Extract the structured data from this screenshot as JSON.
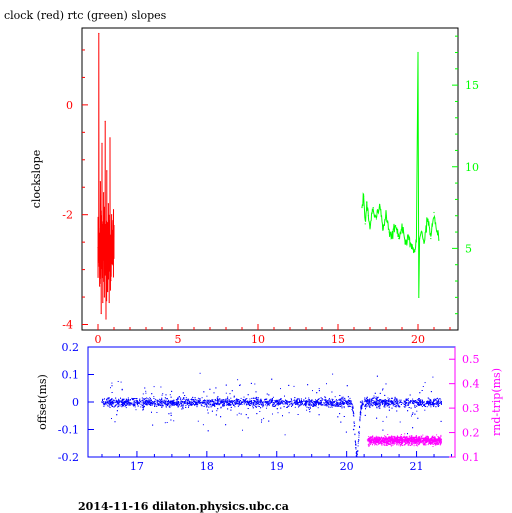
{
  "title": "clock (red) rtc (green) slopes",
  "footer": "2014-11-16 dilaton.physics.ubc.ca",
  "colors": {
    "clock": "#ff0000",
    "rtc": "#00ff00",
    "offset": "#0000ff",
    "rndtrip": "#ff00ff",
    "frame": "#000000"
  },
  "chart_data": [
    {
      "type": "line",
      "title": "clock (red) rtc (green) slopes",
      "xlabel": "",
      "ylabel": "clockslope",
      "y2label": "",
      "xlim": [
        -1,
        22.5
      ],
      "ylim": [
        -4.1,
        1.4
      ],
      "y2lim": [
        0,
        18.5
      ],
      "xticks": [
        0,
        5,
        10,
        15,
        20
      ],
      "yticks": [
        0,
        -2,
        -4
      ],
      "y2ticks": [
        15,
        10,
        5
      ],
      "series": [
        {
          "name": "clock",
          "axis": "left",
          "x": [
            0,
            0.05,
            0.1,
            0.15,
            0.2,
            0.25,
            0.3,
            0.35,
            0.4,
            0.45,
            0.5,
            0.55,
            0.6,
            0.65,
            0.7,
            0.75,
            0.8,
            0.85,
            0.9,
            0.95,
            1.0
          ],
          "y": [
            -2.6,
            1.3,
            -3.3,
            -1.4,
            -3.8,
            -0.7,
            -3.6,
            -1.6,
            -3.5,
            -0.3,
            -3.9,
            -1.2,
            -3.4,
            -1.8,
            -3.6,
            -0.6,
            -3.2,
            -2.0,
            -2.9,
            -2.4,
            -2.2
          ]
        },
        {
          "name": "rtc",
          "axis": "right",
          "x": [
            16.5,
            16.6,
            16.7,
            16.8,
            16.9,
            17.0,
            17.2,
            17.4,
            17.6,
            17.8,
            18.0,
            18.2,
            18.4,
            18.6,
            18.8,
            19.0,
            19.2,
            19.4,
            19.6,
            19.8,
            19.9,
            20.0,
            20.05,
            20.1,
            20.2,
            20.4,
            20.6,
            20.8,
            21.0,
            21.2,
            21.3
          ],
          "y": [
            7.5,
            8.2,
            6.5,
            7.8,
            7.0,
            6.3,
            7.5,
            6.8,
            7.7,
            6.2,
            7.0,
            6.0,
            5.8,
            6.4,
            5.6,
            6.2,
            5.3,
            5.7,
            5.0,
            4.8,
            5.4,
            17.0,
            2.0,
            5.6,
            6.0,
            5.4,
            6.8,
            5.6,
            7.2,
            6.0,
            5.5
          ]
        }
      ]
    },
    {
      "type": "scatter",
      "xlabel": "",
      "ylabel": "offset(ms)",
      "y2label": "rnd-trip(ms)",
      "xlim": [
        16.3,
        21.55
      ],
      "ylim": [
        -0.2,
        0.2
      ],
      "y2lim": [
        0.1,
        0.55
      ],
      "xticks": [
        17,
        18,
        19,
        20,
        21
      ],
      "yticks": [
        0.2,
        0.1,
        0,
        -0.1,
        -0.2
      ],
      "y2ticks": [
        0.5,
        0.4,
        0.3,
        0.2,
        0.1
      ],
      "series": [
        {
          "name": "offset",
          "axis": "left",
          "x": [
            16.5,
            17.0,
            17.5,
            18.0,
            18.5,
            19.0,
            19.5,
            20.0,
            20.1,
            20.15,
            20.2,
            20.5,
            21.0,
            21.35
          ],
          "y": [
            0.0,
            0.0,
            0.0,
            0.0,
            0.0,
            0.0,
            0.0,
            0.0,
            -0.1,
            -0.19,
            0.0,
            0.0,
            0.0,
            0.0
          ]
        },
        {
          "name": "rnd-trip",
          "axis": "right",
          "x": [
            20.3,
            20.8,
            21.35
          ],
          "y": [
            0.17,
            0.17,
            0.17
          ]
        }
      ]
    }
  ]
}
